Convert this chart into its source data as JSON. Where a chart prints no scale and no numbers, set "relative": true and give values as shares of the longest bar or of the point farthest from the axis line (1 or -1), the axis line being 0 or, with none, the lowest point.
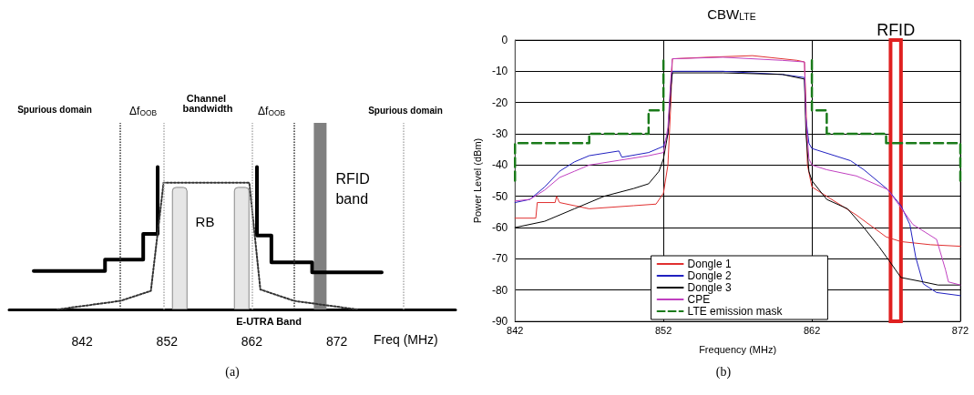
{
  "chart_data": [
    {
      "type": "step",
      "relative": true,
      "xlabel": "Freq (MHz)",
      "xlim": [
        833.4,
        886
      ],
      "xticks": [
        842,
        852,
        862,
        872
      ],
      "grid": false,
      "legend": false,
      "marker": "none",
      "series": [
        {
          "color": "#000000",
          "x": [
            836.3,
            844.7,
            849.2,
            850.9
          ],
          "values": [
            0.27,
            0.35,
            0.53,
            1.0
          ]
        },
        {
          "color": "#000000",
          "x": [
            862.6,
            862.6,
            864.3,
            869.1,
            877.3
          ],
          "values": [
            1.0,
            0.52,
            0.33,
            0.26,
            0.26
          ]
        },
        {
          "type": "line",
          "line_style": "dotted",
          "color": "#333333",
          "x": [
            839.1,
            846.5,
            850.1,
            851.6,
            861.7,
            863,
            867,
            874.4
          ],
          "values": [
            0,
            0.06,
            0.13,
            0.89,
            0.89,
            0.14,
            0.06,
            0
          ]
        },
        {
          "type": "bar",
          "color": "#e6e6e6",
          "x": [
            853.5,
            860.8
          ],
          "values": [
            0.86,
            0.86
          ]
        }
      ],
      "ref_lines": [
        {
          "axis": "x",
          "value": 846.5,
          "color": "#333333",
          "line_style": "dotted"
        },
        {
          "axis": "x",
          "value": 851.6,
          "color": "#aaaaaa",
          "line_style": "dotted"
        },
        {
          "axis": "x",
          "value": 862,
          "color": "#aaaaaa",
          "line_style": "dotted"
        },
        {
          "axis": "x",
          "value": 867,
          "color": "#333333",
          "line_style": "dotted"
        },
        {
          "axis": "x",
          "value": 879.9,
          "color": "#aaaaaa",
          "line_style": "dotted"
        }
      ],
      "bands": [
        {
          "axis": "x",
          "from": 869.3,
          "to": 870.8,
          "label": "RFID band",
          "color": "#808080"
        }
      ],
      "annotations": [
        "Spurious domain",
        "Δf$_{OOB}$",
        "Channel bandwidth",
        "Δf$_{OOB}$",
        "Spurious domain",
        "RB",
        "E-UTRA Band",
        "(a)"
      ]
    },
    {
      "type": "line",
      "xlabel": "Frequency (MHz)",
      "ylabel": "Power Level (dBm)",
      "xlim": [
        842,
        872
      ],
      "xticks": [
        842,
        852,
        862,
        872
      ],
      "ylim": [
        -90,
        0
      ],
      "yticks": [
        -90,
        -80,
        -70,
        -60,
        -50,
        -40,
        -30,
        -20,
        -10,
        0
      ],
      "grid": true,
      "legend": "bottom",
      "marker": "none",
      "series": [
        {
          "name": "Dongle 1",
          "color": "#e03030",
          "x": [
            842,
            843.4,
            843.5,
            844.7,
            844.8,
            845,
            847,
            850,
            851.5,
            852,
            852.3,
            852.5,
            852.6,
            855,
            858,
            861,
            861.5,
            861.6,
            861.7,
            862,
            863,
            865,
            867,
            868,
            870,
            872
          ],
          "values": [
            -57,
            -57,
            -52,
            -52,
            -50,
            -52,
            -54,
            -53,
            -52.5,
            -49,
            -40,
            -20,
            -6,
            -5.5,
            -5,
            -6.5,
            -7,
            -20,
            -40,
            -47,
            -50,
            -56,
            -63,
            -64.5,
            -65.5,
            -66
          ]
        },
        {
          "name": "Dongle 2",
          "color": "#2020c0",
          "x": [
            842,
            843,
            844,
            845,
            846,
            847,
            849,
            849.2,
            851,
            852,
            852.3,
            852.5,
            852.6,
            856,
            860,
            861.5,
            861.6,
            861.8,
            862,
            864.6,
            865.5,
            867.1,
            868,
            868.6,
            869,
            869.5,
            870.4,
            872
          ],
          "values": [
            -52,
            -51,
            -47,
            -42,
            -39,
            -37,
            -35.5,
            -37.5,
            -36,
            -34,
            -30,
            -15,
            -10,
            -10,
            -11,
            -12,
            -25,
            -33,
            -34.7,
            -38.6,
            -41.5,
            -47.8,
            -53,
            -59,
            -69.6,
            -78,
            -80.8,
            -81.8
          ]
        },
        {
          "name": "Dongle 3",
          "color": "#000000",
          "x": [
            842,
            844,
            846,
            848,
            850,
            851,
            851.7,
            852,
            852.3,
            852.5,
            852.6,
            856,
            860,
            861.5,
            861.6,
            861.8,
            862,
            863,
            864.4,
            865.5,
            866.5,
            867.2,
            868,
            869.5,
            870.5,
            872
          ],
          "values": [
            -60,
            -58,
            -54,
            -50,
            -47.5,
            -46,
            -42,
            -38,
            -30,
            -15,
            -10.5,
            -10.5,
            -11,
            -12.5,
            -30,
            -42,
            -45,
            -51,
            -54,
            -60,
            -66,
            -70.6,
            -76,
            -77.4,
            -78.4,
            -78.4
          ]
        },
        {
          "name": "CPE",
          "color": "#c040c0",
          "x": [
            842,
            843,
            844,
            845,
            846,
            847,
            849,
            851,
            852,
            852.3,
            852.5,
            852.6,
            856,
            860,
            861.5,
            861.6,
            861.8,
            862,
            863,
            865,
            867.1,
            868,
            868.8,
            870.4,
            871,
            871.2,
            872
          ],
          "values": [
            -51.5,
            -51,
            -48,
            -44,
            -42,
            -40,
            -38.5,
            -37,
            -36,
            -28,
            -12,
            -6,
            -5.5,
            -6.5,
            -7,
            -25,
            -38,
            -40,
            -41.5,
            -43.5,
            -47.8,
            -53.6,
            -59,
            -63.8,
            -73.5,
            -77.4,
            -78.4
          ]
        },
        {
          "name": "LTE emission mask",
          "type": "step",
          "line_style": "dashed",
          "color": "#1a7a1a",
          "x": [
            842,
            842,
            847,
            851,
            852
          ],
          "values": [
            -45,
            -33,
            -30,
            -22.5,
            -6.5
          ]
        },
        {
          "type": "step",
          "line_style": "dashed",
          "color": "#1a7a1a",
          "x": [
            862,
            862,
            863,
            867,
            872,
            872
          ],
          "values": [
            -6.5,
            -22.5,
            -30,
            -33,
            -33,
            -45
          ]
        }
      ],
      "bands": [
        {
          "axis": "x",
          "from": 867.3,
          "to": 868.0,
          "label": "RFID",
          "color": "#e02020"
        }
      ],
      "annotations": [
        "CBW$_{LTE}$",
        "(b)"
      ]
    }
  ]
}
